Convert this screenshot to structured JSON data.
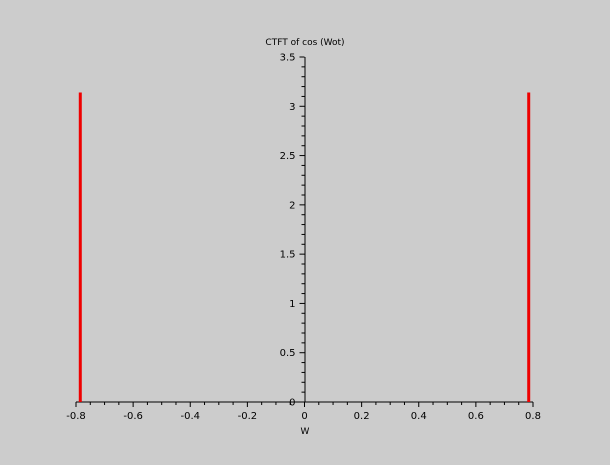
{
  "chart_data": {
    "type": "bar",
    "title": "CTFT of cos (Wot)",
    "xlabel": "W",
    "ylabel": "",
    "xlim": [
      -0.8,
      0.8
    ],
    "ylim": [
      0,
      3.5
    ],
    "grid": false,
    "legend": "none",
    "x": [
      -0.785,
      0.785
    ],
    "values": [
      3.14,
      3.14
    ],
    "x_ticks": [
      "-0.8",
      "-0.6",
      "-0.4",
      "-0.2",
      "0",
      "0.2",
      "0.4",
      "0.6",
      "0.8"
    ],
    "y_ticks": [
      "0",
      "0.5",
      "1",
      "1.5",
      "2",
      "2.5",
      "3",
      "3.5"
    ],
    "colors": {
      "bars": "#ee0000",
      "axes": "#000000",
      "background": "#cccccc"
    }
  }
}
